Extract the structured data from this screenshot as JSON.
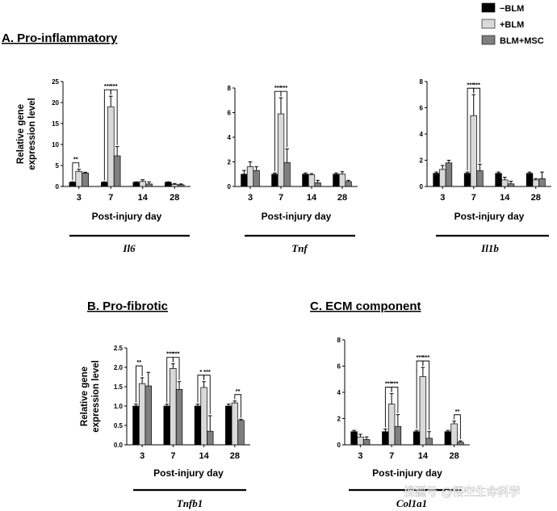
{
  "legend": [
    {
      "label": "−BLM",
      "color": "#000000"
    },
    {
      "label": "+BLM",
      "color": "#d9d9d9"
    },
    {
      "label": "BLM+MSC",
      "color": "#7f7f7f"
    }
  ],
  "sections": {
    "a": "A. Pro-inflammatory",
    "b": "B. Pro-fibrotic",
    "c": "C. ECM component"
  },
  "ylabel_lines": [
    "Relative gene",
    "expression level"
  ],
  "xlabel": "Post-injury day",
  "watermark": "搜狐号 @悟空生命科学",
  "chart_data": [
    {
      "type": "bar",
      "gene": "Il6",
      "ylim": [
        0,
        25
      ],
      "yticks": [
        0,
        5,
        10,
        15,
        20,
        25
      ],
      "categories": [
        "3",
        "7",
        "14",
        "28"
      ],
      "series": [
        {
          "name": "−BLM",
          "values": [
            1.0,
            1.0,
            1.0,
            1.0
          ],
          "err": [
            0.1,
            0.1,
            0.1,
            0.1
          ]
        },
        {
          "name": "+BLM",
          "values": [
            3.6,
            19.0,
            1.2,
            0.5
          ],
          "err": [
            0.5,
            2.5,
            0.4,
            0.2
          ]
        },
        {
          "name": "BLM+MSC",
          "values": [
            3.2,
            7.3,
            0.6,
            0.4
          ],
          "err": [
            0.2,
            2.2,
            0.5,
            0.2
          ]
        }
      ],
      "significance": [
        {
          "cat": 0,
          "pair": [
            0,
            1
          ],
          "label": "**"
        },
        {
          "cat": 1,
          "pair": [
            0,
            1
          ],
          "label": "***"
        },
        {
          "cat": 1,
          "pair": [
            1,
            2
          ],
          "label": "***"
        }
      ]
    },
    {
      "type": "bar",
      "gene": "Tnf",
      "ylim": [
        0,
        8
      ],
      "yticks": [
        0,
        2,
        4,
        6,
        8
      ],
      "categories": [
        "3",
        "7",
        "14",
        "28"
      ],
      "series": [
        {
          "name": "−BLM",
          "values": [
            1.0,
            1.0,
            1.0,
            1.0
          ],
          "err": [
            0.3,
            0.1,
            0.1,
            0.1
          ]
        },
        {
          "name": "+BLM",
          "values": [
            1.6,
            5.9,
            0.95,
            1.0
          ],
          "err": [
            0.4,
            1.3,
            0.1,
            0.2
          ]
        },
        {
          "name": "BLM+MSC",
          "values": [
            1.3,
            1.95,
            0.3,
            0.4
          ],
          "err": [
            0.3,
            1.1,
            0.2,
            0.1
          ]
        }
      ],
      "significance": [
        {
          "cat": 1,
          "pair": [
            0,
            1
          ],
          "label": "***"
        },
        {
          "cat": 1,
          "pair": [
            1,
            2
          ],
          "label": "***"
        }
      ]
    },
    {
      "type": "bar",
      "gene": "Il1b",
      "ylim": [
        0,
        8
      ],
      "yticks": [
        0,
        2,
        4,
        6,
        8
      ],
      "categories": [
        "3",
        "7",
        "14",
        "28"
      ],
      "series": [
        {
          "name": "−BLM",
          "values": [
            1.0,
            1.0,
            1.0,
            1.0
          ],
          "err": [
            0.1,
            0.1,
            0.1,
            0.1
          ]
        },
        {
          "name": "+BLM",
          "values": [
            1.3,
            5.4,
            0.5,
            0.5
          ],
          "err": [
            0.3,
            1.6,
            0.2,
            0.1
          ]
        },
        {
          "name": "BLM+MSC",
          "values": [
            1.8,
            1.2,
            0.2,
            0.6
          ],
          "err": [
            0.2,
            0.5,
            0.2,
            0.5
          ]
        }
      ],
      "significance": [
        {
          "cat": 1,
          "pair": [
            0,
            1
          ],
          "label": "***"
        },
        {
          "cat": 1,
          "pair": [
            1,
            2
          ],
          "label": "***"
        }
      ]
    },
    {
      "type": "bar",
      "gene": "Tnfb1",
      "ylim": [
        0,
        2.5
      ],
      "yticks": [
        0.0,
        0.5,
        1.0,
        1.5,
        2.0,
        2.5
      ],
      "yticklabels": [
        "0.0",
        "0.5",
        "1.0",
        "1.5",
        "2.0",
        "2.5"
      ],
      "categories": [
        "3",
        "7",
        "14",
        "28"
      ],
      "series": [
        {
          "name": "−BLM",
          "values": [
            1.0,
            1.0,
            1.0,
            1.0
          ],
          "err": [
            0.05,
            0.05,
            0.05,
            0.05
          ]
        },
        {
          "name": "+BLM",
          "values": [
            1.58,
            1.97,
            1.48,
            1.08
          ],
          "err": [
            0.15,
            0.12,
            0.15,
            0.05
          ]
        },
        {
          "name": "BLM+MSC",
          "values": [
            1.52,
            1.43,
            0.35,
            0.63
          ],
          "err": [
            0.35,
            0.2,
            0.4,
            0.03
          ]
        }
      ],
      "significance": [
        {
          "cat": 0,
          "pair": [
            0,
            1
          ],
          "label": "**"
        },
        {
          "cat": 1,
          "pair": [
            0,
            1
          ],
          "label": "***"
        },
        {
          "cat": 1,
          "pair": [
            1,
            2
          ],
          "label": "***"
        },
        {
          "cat": 2,
          "pair": [
            0,
            1
          ],
          "label": "*"
        },
        {
          "cat": 2,
          "pair": [
            1,
            2
          ],
          "label": "***"
        },
        {
          "cat": 3,
          "pair": [
            1,
            2
          ],
          "label": "**"
        }
      ]
    },
    {
      "type": "bar",
      "gene": "Col1a1",
      "ylim": [
        0,
        8
      ],
      "yticks": [
        0,
        2,
        4,
        6,
        8
      ],
      "categories": [
        "3",
        "7",
        "14",
        "28"
      ],
      "series": [
        {
          "name": "−BLM",
          "values": [
            1.0,
            1.0,
            1.0,
            1.0
          ],
          "err": [
            0.1,
            0.2,
            0.1,
            0.1
          ]
        },
        {
          "name": "+BLM",
          "values": [
            0.6,
            3.1,
            5.2,
            1.6
          ],
          "err": [
            0.2,
            0.8,
            0.7,
            0.2
          ]
        },
        {
          "name": "BLM+MSC",
          "values": [
            0.4,
            1.4,
            0.5,
            0.2
          ],
          "err": [
            0.2,
            0.9,
            0.5,
            0.1
          ]
        }
      ],
      "significance": [
        {
          "cat": 1,
          "pair": [
            0,
            1
          ],
          "label": "***"
        },
        {
          "cat": 1,
          "pair": [
            1,
            2
          ],
          "label": "***"
        },
        {
          "cat": 2,
          "pair": [
            0,
            1
          ],
          "label": "***"
        },
        {
          "cat": 2,
          "pair": [
            1,
            2
          ],
          "label": "***"
        },
        {
          "cat": 3,
          "pair": [
            1,
            2
          ],
          "label": "**"
        }
      ]
    }
  ]
}
